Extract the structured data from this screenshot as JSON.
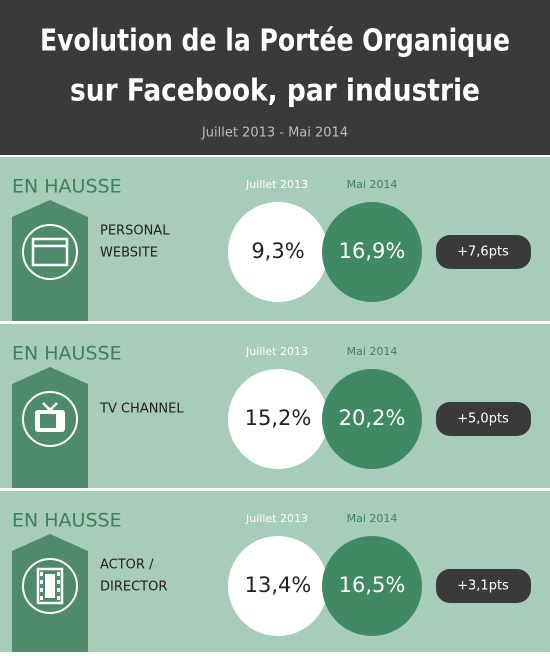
{
  "header": {
    "title_lines": [
      "Evolution de la Portée Organique",
      "sur Facebook, par industrie"
    ],
    "subtitle": "Juillet 2013 - Mai 2014"
  },
  "rows": [
    {
      "status": "EN HAUSSE",
      "col_before": "Juillet 2013",
      "col_after": "Mai 2014",
      "category_lines": [
        "PERSONAL",
        "WEBSITE"
      ],
      "before": "9,3%",
      "after": "16,9%",
      "change": "+7,6pts",
      "icon": "website"
    },
    {
      "status": "EN HAUSSE",
      "col_before": "Juillet 2013",
      "col_after": "Mai 2014",
      "category_lines": [
        "TV CHANNEL"
      ],
      "before": "15,2%",
      "after": "20,2%",
      "change": "+5,0pts",
      "icon": "tv"
    },
    {
      "status": "EN HAUSSE",
      "col_before": "Juillet 2013",
      "col_after": "Mai 2014",
      "category_lines": [
        "ACTOR /",
        "DIRECTOR"
      ],
      "before": "13,4%",
      "after": "16,5%",
      "change": "+3,1pts",
      "icon": "film"
    }
  ]
}
